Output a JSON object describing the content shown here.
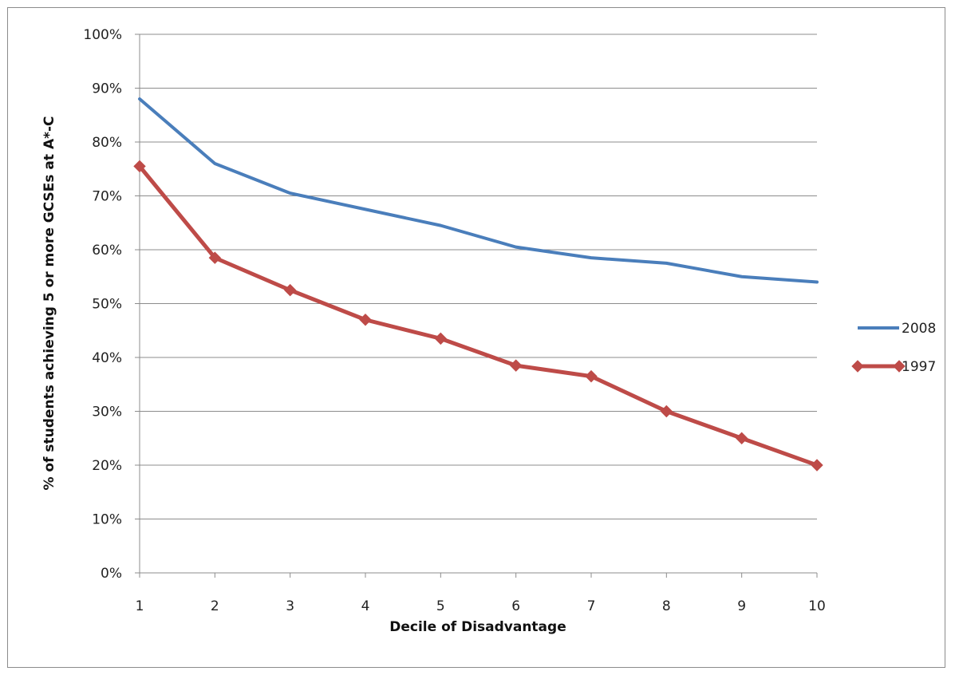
{
  "chart_data": {
    "type": "line",
    "title": "",
    "xlabel": "Decile of Disadvantage",
    "ylabel": "% of students achieving 5 or more GCSEs at A*-C",
    "x": [
      1,
      2,
      3,
      4,
      5,
      6,
      7,
      8,
      9,
      10
    ],
    "ylim": [
      0,
      100
    ],
    "yticks": [
      "0%",
      "10%",
      "20%",
      "30%",
      "40%",
      "50%",
      "60%",
      "70%",
      "80%",
      "90%",
      "100%"
    ],
    "grid": true,
    "legend_position": "right",
    "series": [
      {
        "name": "2008",
        "color": "#4a7ebb",
        "marker": "none",
        "values": [
          88,
          76,
          70.5,
          67.5,
          64.5,
          60.5,
          58.5,
          57.5,
          55,
          54
        ]
      },
      {
        "name": "1997",
        "color": "#be4b48",
        "marker": "diamond",
        "values": [
          75.5,
          58.5,
          52.5,
          47,
          43.5,
          38.5,
          36.5,
          30,
          25,
          20
        ]
      }
    ]
  }
}
